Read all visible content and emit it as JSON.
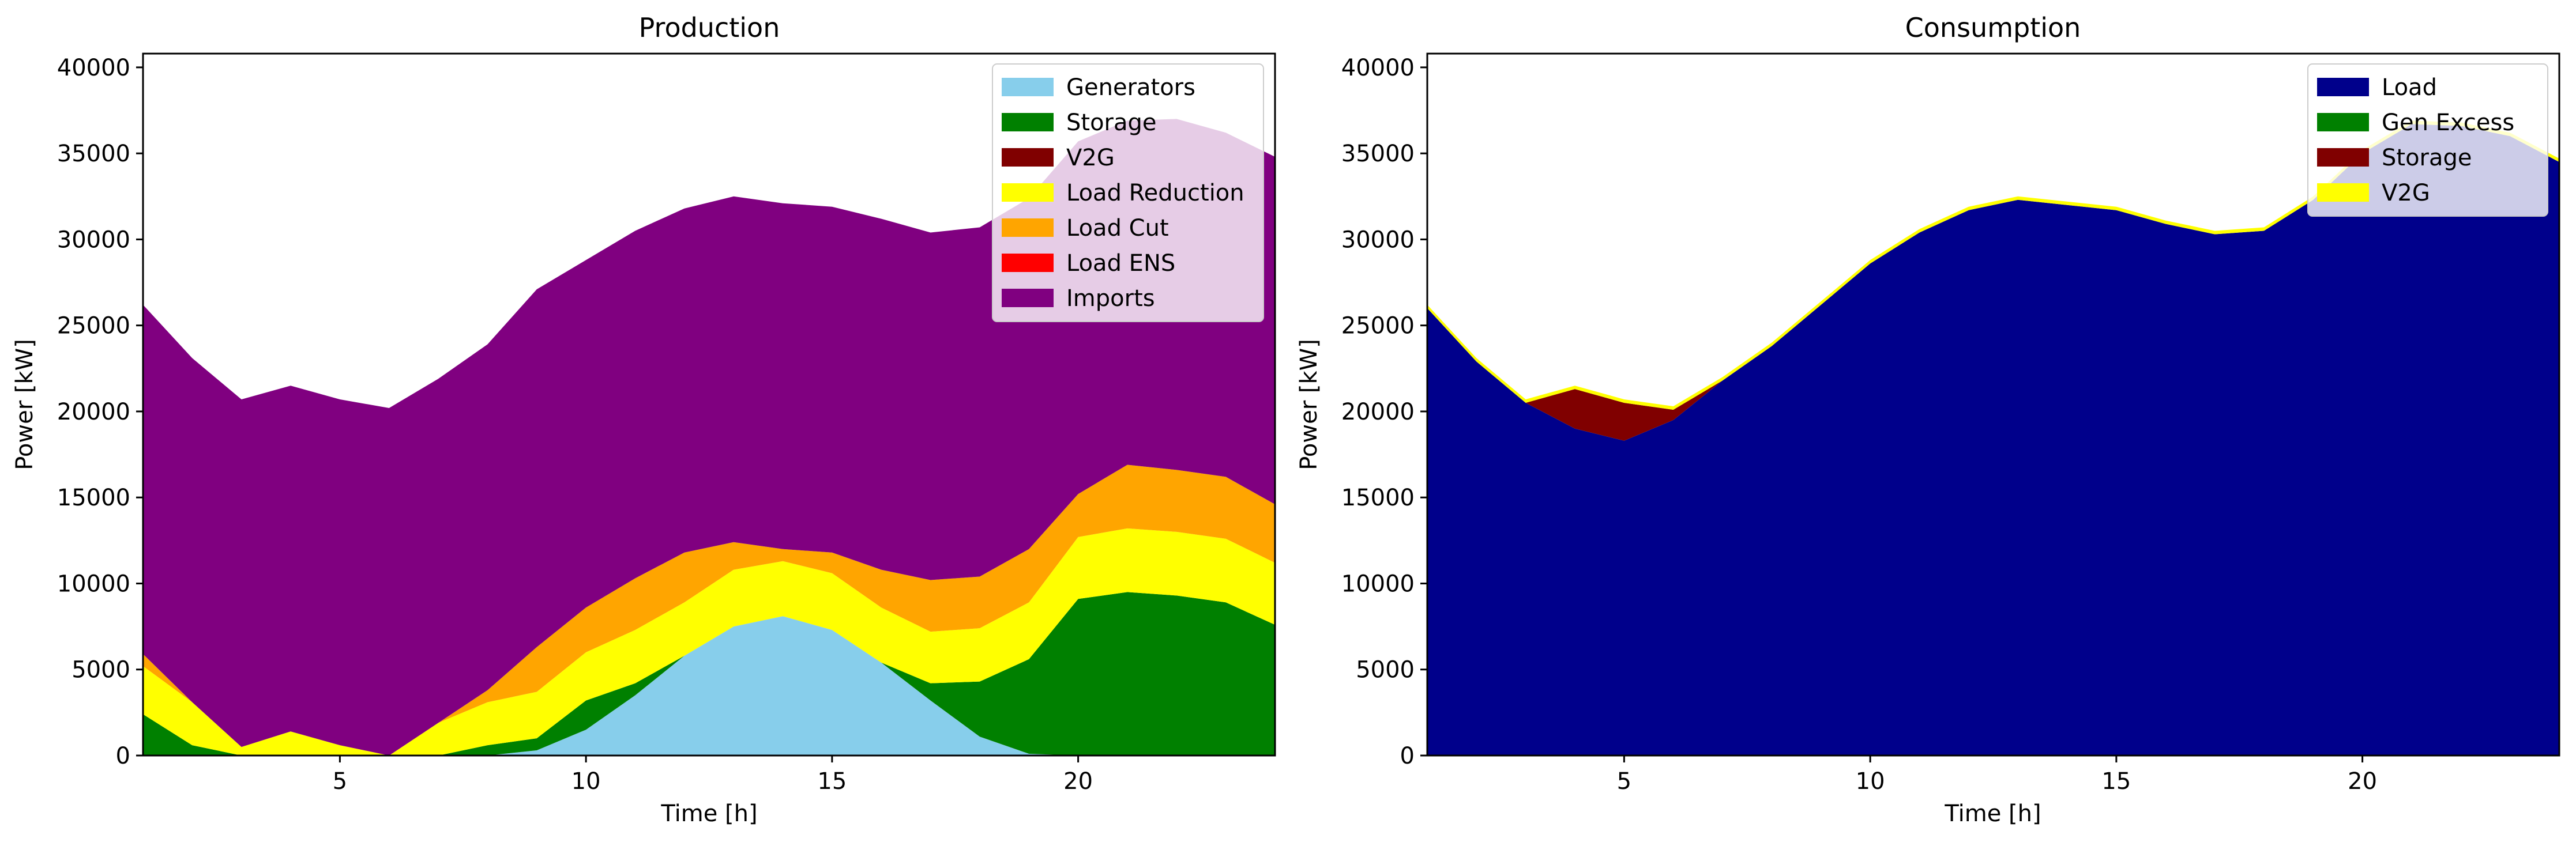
{
  "figure": {
    "background": "#ffffff"
  },
  "chart_data": [
    {
      "type": "area",
      "stacked": true,
      "title": "Production",
      "xlabel": "Time [h]",
      "ylabel": "Power [kW]",
      "xlim": [
        1,
        24
      ],
      "ylim": [
        0,
        40800
      ],
      "xticks": [
        5,
        10,
        15,
        20
      ],
      "yticks": [
        0,
        5000,
        10000,
        15000,
        20000,
        25000,
        30000,
        35000,
        40000
      ],
      "grid": false,
      "legend_position": "top-right",
      "x": [
        1,
        2,
        3,
        4,
        5,
        6,
        7,
        8,
        9,
        10,
        11,
        12,
        13,
        14,
        15,
        16,
        17,
        18,
        19,
        20,
        21,
        22,
        23,
        24
      ],
      "series": [
        {
          "name": "Generators",
          "color": "#87ceeb",
          "values": [
            0,
            0,
            0,
            0,
            0,
            0,
            0,
            0,
            300,
            1500,
            3500,
            5800,
            7500,
            8100,
            7300,
            5400,
            3200,
            1100,
            100,
            0,
            0,
            0,
            0,
            0
          ]
        },
        {
          "name": "Storage",
          "color": "#008000",
          "values": [
            2400,
            600,
            0,
            0,
            0,
            0,
            0,
            600,
            700,
            1700,
            700,
            0,
            0,
            0,
            0,
            0,
            1000,
            3200,
            5500,
            9100,
            9500,
            9300,
            8900,
            7600
          ]
        },
        {
          "name": "V2G",
          "color": "#800000",
          "values": [
            0,
            0,
            0,
            0,
            0,
            0,
            0,
            0,
            0,
            0,
            0,
            0,
            0,
            0,
            0,
            0,
            0,
            0,
            0,
            0,
            0,
            0,
            0,
            0
          ]
        },
        {
          "name": "Load Reduction",
          "color": "#ffff00",
          "values": [
            2800,
            2500,
            500,
            1400,
            600,
            0,
            1900,
            2500,
            2700,
            2800,
            3100,
            3100,
            3300,
            3200,
            3300,
            3200,
            3000,
            3100,
            3300,
            3600,
            3700,
            3700,
            3700,
            3600
          ]
        },
        {
          "name": "Load Cut",
          "color": "#ffa500",
          "values": [
            700,
            0,
            0,
            0,
            0,
            0,
            0,
            700,
            2600,
            2600,
            3000,
            2900,
            1600,
            700,
            1200,
            2200,
            3000,
            3000,
            3100,
            2500,
            3700,
            3600,
            3600,
            3400
          ]
        },
        {
          "name": "Load ENS",
          "color": "#ff0000",
          "values": [
            0,
            0,
            0,
            0,
            0,
            0,
            0,
            0,
            0,
            0,
            0,
            0,
            0,
            0,
            0,
            0,
            0,
            0,
            0,
            0,
            0,
            0,
            0,
            0
          ]
        },
        {
          "name": "Imports",
          "color": "#800080",
          "values": [
            20300,
            20000,
            20200,
            20100,
            20100,
            20200,
            20000,
            20100,
            20800,
            20200,
            20200,
            20000,
            20100,
            20100,
            20100,
            20400,
            20200,
            20300,
            20400,
            20500,
            20000,
            20400,
            20000,
            20200
          ]
        }
      ]
    },
    {
      "type": "area",
      "stacked": true,
      "title": "Consumption",
      "xlabel": "Time [h]",
      "ylabel": "Power [kW]",
      "xlim": [
        1,
        24
      ],
      "ylim": [
        0,
        40800
      ],
      "xticks": [
        5,
        10,
        15,
        20
      ],
      "yticks": [
        0,
        5000,
        10000,
        15000,
        20000,
        25000,
        30000,
        35000,
        40000
      ],
      "grid": false,
      "legend_position": "top-right",
      "x": [
        1,
        2,
        3,
        4,
        5,
        6,
        7,
        8,
        9,
        10,
        11,
        12,
        13,
        14,
        15,
        16,
        17,
        18,
        19,
        20,
        21,
        22,
        23,
        24
      ],
      "series": [
        {
          "name": "Load",
          "color": "#00008b",
          "values": [
            26000,
            22900,
            20500,
            19000,
            18300,
            19500,
            21800,
            23800,
            26200,
            28600,
            30400,
            31700,
            32300,
            32000,
            31700,
            30900,
            30300,
            30500,
            32300,
            35000,
            36700,
            36600,
            36000,
            34500
          ]
        },
        {
          "name": "Gen Excess",
          "color": "#008000",
          "values": [
            0,
            0,
            0,
            0,
            0,
            0,
            0,
            0,
            0,
            0,
            0,
            0,
            0,
            0,
            0,
            0,
            0,
            0,
            0,
            0,
            0,
            0,
            0,
            0
          ]
        },
        {
          "name": "Storage",
          "color": "#800000",
          "values": [
            0,
            0,
            0,
            2300,
            2200,
            600,
            0,
            0,
            0,
            0,
            0,
            0,
            0,
            0,
            0,
            0,
            0,
            0,
            0,
            0,
            0,
            0,
            0,
            0
          ]
        },
        {
          "name": "V2G",
          "color": "#ffff00",
          "values": [
            200,
            200,
            200,
            200,
            200,
            200,
            200,
            200,
            200,
            200,
            200,
            200,
            200,
            200,
            200,
            200,
            200,
            200,
            200,
            200,
            200,
            200,
            200,
            200
          ]
        }
      ]
    }
  ]
}
